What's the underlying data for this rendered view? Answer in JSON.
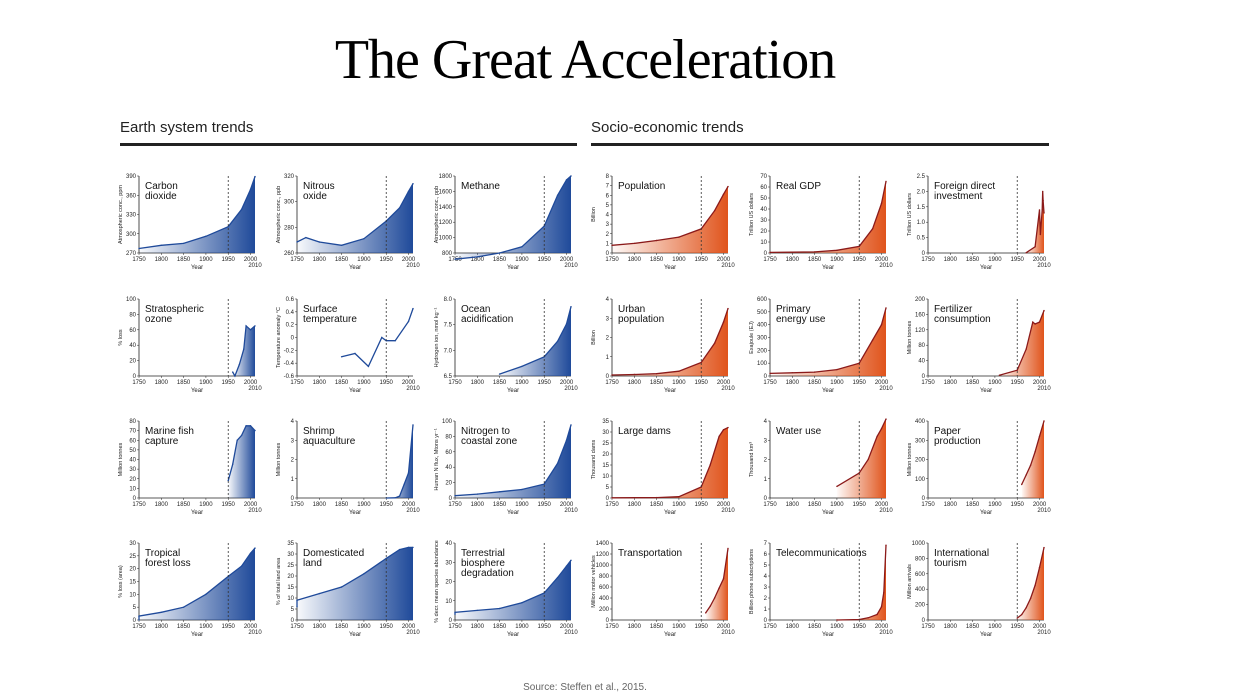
{
  "title": "The Great Acceleration",
  "sections": {
    "earth": "Earth system trends",
    "socio": "Socio-economic trends"
  },
  "source": "Source: Steffen et al., 2015.",
  "colors": {
    "earth": "#1f4a9a",
    "socio": "#e0541c",
    "socio_line": "#8b1a1a"
  },
  "chart_data": [
    {
      "type": "area",
      "title": [
        "Carbon",
        "dioxide"
      ],
      "ylabel": "Atmospheric conc., ppm",
      "xlabel": "Year",
      "ylim": [
        270,
        390
      ],
      "yticks": [
        "270",
        "300",
        "330",
        "360",
        "390"
      ],
      "x": [
        1750,
        1800,
        1850,
        1900,
        1950,
        1980,
        2000,
        2010
      ],
      "values": [
        277,
        282,
        285,
        296,
        311,
        338,
        369,
        389
      ]
    },
    {
      "type": "area",
      "title": [
        "Nitrous",
        "oxide"
      ],
      "ylabel": "Atmospheric conc., ppb",
      "xlabel": "Year",
      "ylim": [
        260,
        330
      ],
      "yticks": [
        "260",
        "280",
        "300",
        "320"
      ],
      "x": [
        1750,
        1770,
        1800,
        1850,
        1900,
        1950,
        1980,
        2000,
        2010
      ],
      "values": [
        270,
        274,
        270,
        267,
        273,
        289,
        301,
        316,
        323
      ]
    },
    {
      "type": "area",
      "title": [
        "Methane"
      ],
      "ylabel": "Atmospheric conc., ppb",
      "xlabel": "Year",
      "ylim": [
        800,
        1800
      ],
      "yticks": [
        "800",
        "1000",
        "1200",
        "1400",
        "1600",
        "1800"
      ],
      "x": [
        1750,
        1800,
        1850,
        1900,
        1950,
        1980,
        2000,
        2010
      ],
      "values": [
        720,
        750,
        800,
        880,
        1150,
        1550,
        1750,
        1800
      ]
    },
    {
      "type": "area",
      "title": [
        "Population"
      ],
      "ylabel": "Billion",
      "xlabel": "Year",
      "ylim": [
        0,
        8
      ],
      "yticks": [
        "0",
        "1",
        "2",
        "3",
        "4",
        "5",
        "6",
        "7",
        "8"
      ],
      "x": [
        1750,
        1800,
        1850,
        1900,
        1950,
        1980,
        2000,
        2010
      ],
      "values": [
        0.8,
        1.0,
        1.3,
        1.65,
        2.5,
        4.4,
        6.1,
        6.9
      ]
    },
    {
      "type": "area",
      "title": [
        "Real GDP"
      ],
      "ylabel": "Trillion US dollars",
      "xlabel": "Year",
      "ylim": [
        0,
        70
      ],
      "yticks": [
        "0",
        "10",
        "20",
        "30",
        "40",
        "50",
        "60",
        "70"
      ],
      "x": [
        1750,
        1800,
        1850,
        1900,
        1950,
        1980,
        2000,
        2010
      ],
      "values": [
        0.5,
        0.7,
        1,
        2.5,
        6,
        22,
        45,
        65
      ]
    },
    {
      "type": "area",
      "title": [
        "Foreign direct",
        "investment"
      ],
      "ylabel": "Trillion US dollars",
      "xlabel": "Year",
      "ylim": [
        0,
        2.5
      ],
      "yticks": [
        "0",
        "0.5",
        "1.0",
        "1.5",
        "2.0",
        "2.5"
      ],
      "x": [
        1970,
        1990,
        2000,
        2002,
        2006,
        2007,
        2008,
        2010
      ],
      "values": [
        0.01,
        0.2,
        1.4,
        0.6,
        1.4,
        2.0,
        1.7,
        1.3
      ]
    },
    {
      "type": "area",
      "title": [
        "Stratospheric",
        "ozone"
      ],
      "ylabel": "% loss",
      "xlabel": "Year",
      "ylim": [
        0,
        100
      ],
      "yticks": [
        "0",
        "20",
        "40",
        "60",
        "80",
        "100"
      ],
      "x": [
        1960,
        1965,
        1975,
        1985,
        1990,
        2000,
        2010
      ],
      "values": [
        5,
        0,
        15,
        35,
        65,
        60,
        65
      ]
    },
    {
      "type": "line",
      "title": [
        "Surface",
        "temperature"
      ],
      "ylabel": "Temperature anomaly °C",
      "xlabel": "Year",
      "ylim": [
        -0.6,
        0.6
      ],
      "yticks": [
        "-0.6",
        "-0.4",
        "-0.2",
        "0",
        "0.2",
        "0.4",
        "0.6"
      ],
      "x": [
        1850,
        1880,
        1910,
        1940,
        1950,
        1970,
        2000,
        2010
      ],
      "values": [
        -0.3,
        -0.25,
        -0.45,
        0.0,
        -0.05,
        -0.05,
        0.25,
        0.45
      ]
    },
    {
      "type": "area",
      "title": [
        "Ocean",
        "acidification"
      ],
      "ylabel": "Hydrogen ion, nmol kg⁻¹",
      "xlabel": "Year",
      "ylim": [
        6.5,
        8.5
      ],
      "yticks": [
        "6.5",
        "7.0",
        "7.5",
        "8.0"
      ],
      "x": [
        1850,
        1900,
        1950,
        1980,
        2000,
        2010
      ],
      "values": [
        6.55,
        6.75,
        7.0,
        7.4,
        7.85,
        8.3
      ]
    },
    {
      "type": "area",
      "title": [
        "Urban",
        "population"
      ],
      "ylabel": "Billion",
      "xlabel": "Year",
      "ylim": [
        0,
        4
      ],
      "yticks": [
        "0",
        "1",
        "2",
        "3",
        "4"
      ],
      "x": [
        1750,
        1800,
        1850,
        1900,
        1950,
        1980,
        2000,
        2010
      ],
      "values": [
        0.05,
        0.08,
        0.12,
        0.25,
        0.7,
        1.7,
        2.8,
        3.5
      ]
    },
    {
      "type": "area",
      "title": [
        "Primary",
        "energy use"
      ],
      "ylabel": "Exajoule (EJ)",
      "xlabel": "Year",
      "ylim": [
        0,
        600
      ],
      "yticks": [
        "0",
        "100",
        "200",
        "300",
        "400",
        "500",
        "600"
      ],
      "x": [
        1750,
        1800,
        1850,
        1900,
        1950,
        1980,
        2000,
        2010
      ],
      "values": [
        20,
        25,
        30,
        50,
        100,
        280,
        400,
        530
      ]
    },
    {
      "type": "area",
      "title": [
        "Fertilizer",
        "consumption"
      ],
      "ylabel": "Million tonnes",
      "xlabel": "Year",
      "ylim": [
        0,
        200
      ],
      "yticks": [
        "0",
        "40",
        "80",
        "120",
        "160",
        "200"
      ],
      "x": [
        1910,
        1950,
        1970,
        1985,
        1990,
        2000,
        2010
      ],
      "values": [
        2,
        15,
        70,
        140,
        135,
        140,
        170
      ]
    },
    {
      "type": "area",
      "title": [
        "Marine fish",
        "capture"
      ],
      "ylabel": "Million tonnes",
      "xlabel": "Year",
      "ylim": [
        0,
        80
      ],
      "yticks": [
        "0",
        "10",
        "20",
        "30",
        "40",
        "50",
        "60",
        "70",
        "80"
      ],
      "x": [
        1950,
        1960,
        1970,
        1980,
        1990,
        2000,
        2010
      ],
      "values": [
        18,
        35,
        60,
        65,
        75,
        75,
        70
      ]
    },
    {
      "type": "area",
      "title": [
        "Shrimp",
        "aquaculture"
      ],
      "ylabel": "Million tonnes",
      "xlabel": "Year",
      "ylim": [
        0,
        4
      ],
      "yticks": [
        "0",
        "1",
        "2",
        "3",
        "4"
      ],
      "x": [
        1950,
        1970,
        1980,
        1990,
        2000,
        2010
      ],
      "values": [
        0,
        0.01,
        0.1,
        0.7,
        1.3,
        3.8
      ]
    },
    {
      "type": "area",
      "title": [
        "Nitrogen to",
        "coastal zone"
      ],
      "ylabel": "Human N flux, Mtons yr⁻¹",
      "xlabel": "Year",
      "ylim": [
        0,
        100
      ],
      "yticks": [
        "0",
        "20",
        "40",
        "60",
        "80",
        "100"
      ],
      "x": [
        1750,
        1800,
        1850,
        1900,
        1950,
        1980,
        2000,
        2010
      ],
      "values": [
        3,
        5,
        8,
        11,
        18,
        45,
        75,
        95
      ]
    },
    {
      "type": "area",
      "title": [
        "Large dams"
      ],
      "ylabel": "Thousand dams",
      "xlabel": "Year",
      "ylim": [
        0,
        35
      ],
      "yticks": [
        "0",
        "5",
        "10",
        "15",
        "20",
        "25",
        "30",
        "35"
      ],
      "x": [
        1750,
        1850,
        1900,
        1950,
        1970,
        1990,
        2000,
        2010
      ],
      "values": [
        0.1,
        0.2,
        0.6,
        5,
        15,
        28,
        31,
        32
      ]
    },
    {
      "type": "area",
      "title": [
        "Water use"
      ],
      "ylabel": "Thousand km³",
      "xlabel": "Year",
      "ylim": [
        0,
        4
      ],
      "yticks": [
        "0",
        "1",
        "2",
        "3",
        "4"
      ],
      "x": [
        1900,
        1950,
        1970,
        1990,
        2000,
        2010
      ],
      "values": [
        0.6,
        1.3,
        2.0,
        3.2,
        3.6,
        4.1
      ]
    },
    {
      "type": "area",
      "title": [
        "Paper",
        "production"
      ],
      "ylabel": "Million tonnes",
      "xlabel": "Year",
      "ylim": [
        0,
        400
      ],
      "yticks": [
        "0",
        "100",
        "200",
        "300",
        "400"
      ],
      "x": [
        1960,
        1970,
        1980,
        1990,
        2000,
        2010
      ],
      "values": [
        70,
        120,
        170,
        240,
        320,
        400
      ]
    },
    {
      "type": "area",
      "title": [
        "Tropical",
        "forest loss"
      ],
      "ylabel": "% loss (area)",
      "xlabel": "Year",
      "ylim": [
        0,
        30
      ],
      "yticks": [
        "0",
        "5",
        "10",
        "15",
        "20",
        "25",
        "30"
      ],
      "x": [
        1700,
        1750,
        1800,
        1850,
        1900,
        1950,
        1980,
        2000,
        2010
      ],
      "values": [
        0,
        1.5,
        3,
        5,
        10,
        17,
        21,
        26,
        28
      ]
    },
    {
      "type": "area",
      "title": [
        "Domesticated",
        "land"
      ],
      "ylabel": "% of total land area",
      "xlabel": "Year",
      "ylim": [
        0,
        35
      ],
      "yticks": [
        "0",
        "5",
        "10",
        "15",
        "20",
        "25",
        "30",
        "35"
      ],
      "x": [
        1700,
        1750,
        1800,
        1850,
        1900,
        1950,
        1980,
        2000,
        2010
      ],
      "values": [
        6,
        9,
        12,
        15,
        21,
        28,
        32,
        33,
        33
      ]
    },
    {
      "type": "area",
      "title": [
        "Terrestrial",
        "biosphere",
        "degradation"
      ],
      "ylabel": "% decr. mean species abundance",
      "xlabel": "Year",
      "ylim": [
        0,
        40
      ],
      "yticks": [
        "0",
        "10",
        "20",
        "30",
        "40"
      ],
      "x": [
        1700,
        1750,
        1800,
        1850,
        1900,
        1950,
        1980,
        2000,
        2010
      ],
      "values": [
        3,
        4,
        5,
        6,
        9,
        14,
        22,
        28,
        31
      ]
    },
    {
      "type": "area",
      "title": [
        "Transportation"
      ],
      "ylabel": "Million motor vehicles",
      "xlabel": "Year",
      "ylim": [
        0,
        1400
      ],
      "yticks": [
        "0",
        "200",
        "400",
        "600",
        "800",
        "1000",
        "1200",
        "1400"
      ],
      "x": [
        1960,
        1970,
        1980,
        1990,
        2000,
        2010
      ],
      "values": [
        130,
        250,
        400,
        580,
        750,
        1300
      ]
    },
    {
      "type": "area",
      "title": [
        "Telecommunications"
      ],
      "ylabel": "Billion phone subscriptions",
      "xlabel": "Year",
      "ylim": [
        0,
        7
      ],
      "yticks": [
        "0",
        "1",
        "2",
        "3",
        "4",
        "5",
        "6",
        "7"
      ],
      "x": [
        1900,
        1950,
        1970,
        1990,
        2000,
        2005,
        2010
      ],
      "values": [
        0,
        0.05,
        0.2,
        0.5,
        1.2,
        2.5,
        6.8
      ]
    },
    {
      "type": "area",
      "title": [
        "International",
        "tourism"
      ],
      "ylabel": "Million arrivals",
      "xlabel": "Year",
      "ylim": [
        0,
        1000
      ],
      "yticks": [
        "0",
        "200",
        "400",
        "600",
        "800",
        "1000"
      ],
      "x": [
        1950,
        1960,
        1970,
        1980,
        1990,
        2000,
        2010
      ],
      "values": [
        25,
        70,
        160,
        280,
        450,
        680,
        940
      ]
    }
  ],
  "x_ticks": [
    "1750",
    "1800",
    "1850",
    "1900",
    "1950",
    "2000"
  ],
  "x_end_label": "2010",
  "marker_year": "1950"
}
